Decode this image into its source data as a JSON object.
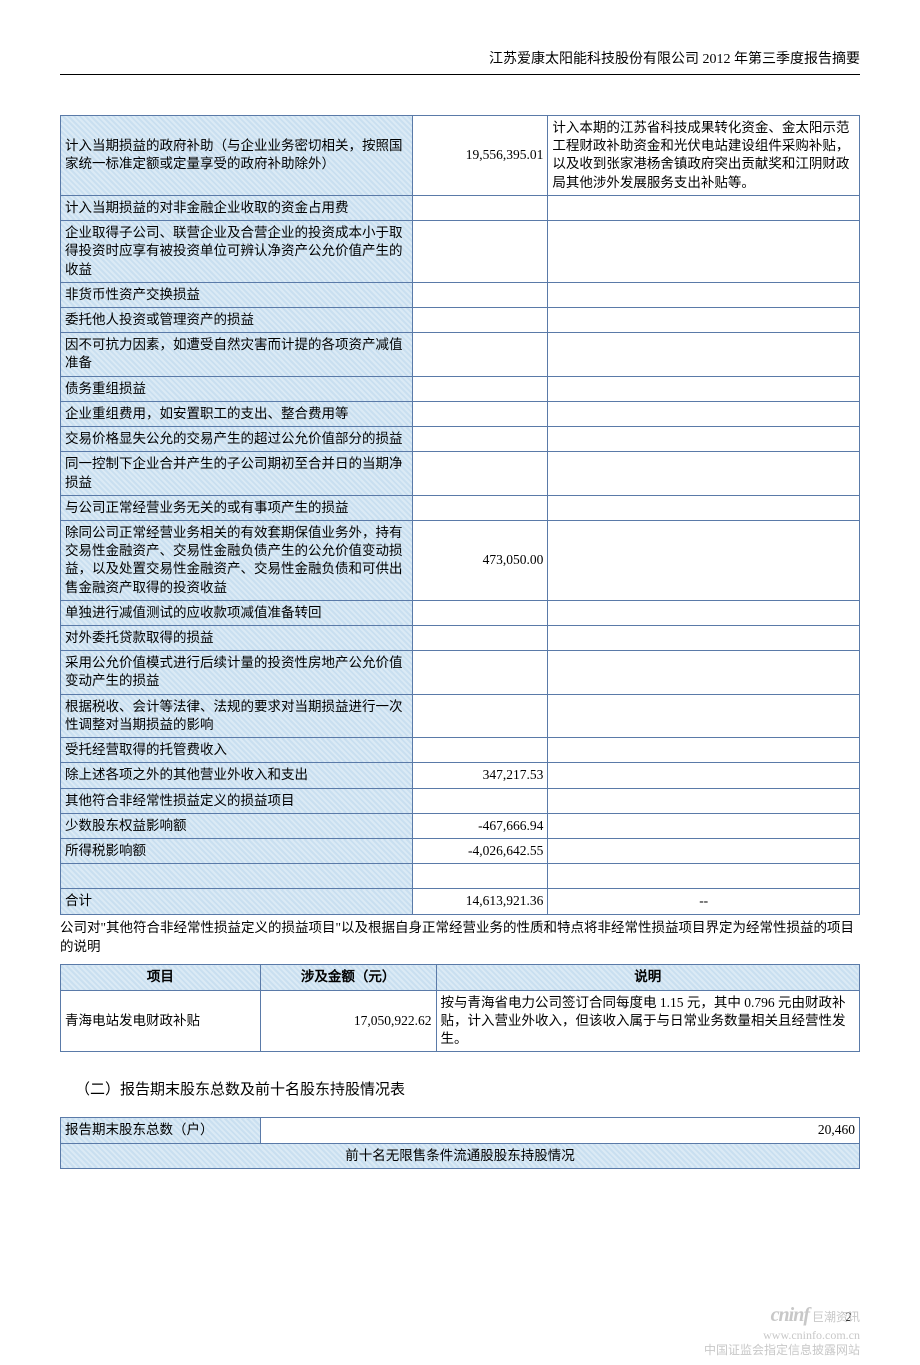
{
  "header": "江苏爱康太阳能科技股份有限公司 2012 年第三季度报告摘要",
  "table1": {
    "col_widths": [
      "44%",
      "17%",
      "39%"
    ],
    "rows": [
      {
        "label": "计入当期损益的政府补助（与企业业务密切相关，按照国家统一标准定额或定量享受的政府补助除外）",
        "amount": "19,556,395.01",
        "desc": "计入本期的江苏省科技成果转化资金、金太阳示范工程财政补助资金和光伏电站建设组件采购补贴，以及收到张家港杨舍镇政府突出贡献奖和江阴财政局其他涉外发展服务支出补贴等。"
      },
      {
        "label": "计入当期损益的对非金融企业收取的资金占用费",
        "amount": "",
        "desc": ""
      },
      {
        "label": "企业取得子公司、联营企业及合营企业的投资成本小于取得投资时应享有被投资单位可辨认净资产公允价值产生的收益",
        "amount": "",
        "desc": ""
      },
      {
        "label": "非货币性资产交换损益",
        "amount": "",
        "desc": ""
      },
      {
        "label": "委托他人投资或管理资产的损益",
        "amount": "",
        "desc": ""
      },
      {
        "label": "因不可抗力因素，如遭受自然灾害而计提的各项资产减值准备",
        "amount": "",
        "desc": ""
      },
      {
        "label": "债务重组损益",
        "amount": "",
        "desc": ""
      },
      {
        "label": "企业重组费用，如安置职工的支出、整合费用等",
        "amount": "",
        "desc": ""
      },
      {
        "label": "交易价格显失公允的交易产生的超过公允价值部分的损益",
        "amount": "",
        "desc": ""
      },
      {
        "label": "同一控制下企业合并产生的子公司期初至合并日的当期净损益",
        "amount": "",
        "desc": ""
      },
      {
        "label": "与公司正常经营业务无关的或有事项产生的损益",
        "amount": "",
        "desc": ""
      },
      {
        "label": "除同公司正常经营业务相关的有效套期保值业务外，持有交易性金融资产、交易性金融负债产生的公允价值变动损益，以及处置交易性金融资产、交易性金融负债和可供出售金融资产取得的投资收益",
        "amount": "473,050.00",
        "desc": ""
      },
      {
        "label": "单独进行减值测试的应收款项减值准备转回",
        "amount": "",
        "desc": ""
      },
      {
        "label": "对外委托贷款取得的损益",
        "amount": "",
        "desc": ""
      },
      {
        "label": "采用公允价值模式进行后续计量的投资性房地产公允价值变动产生的损益",
        "amount": "",
        "desc": ""
      },
      {
        "label": "根据税收、会计等法律、法规的要求对当期损益进行一次性调整对当期损益的影响",
        "amount": "",
        "desc": ""
      },
      {
        "label": "受托经营取得的托管费收入",
        "amount": "",
        "desc": ""
      },
      {
        "label": "除上述各项之外的其他营业外收入和支出",
        "amount": "347,217.53",
        "desc": ""
      },
      {
        "label": "其他符合非经常性损益定义的损益项目",
        "amount": "",
        "desc": ""
      },
      {
        "label": "少数股东权益影响额",
        "amount": "-467,666.94",
        "desc": ""
      },
      {
        "label": "所得税影响额",
        "amount": "-4,026,642.55",
        "desc": ""
      },
      {
        "label": "",
        "amount": "",
        "desc": "",
        "blank": true
      },
      {
        "label": "合计",
        "amount": "14,613,921.36",
        "desc": "--",
        "desc_center": true
      }
    ]
  },
  "note1": "公司对\"其他符合非经常性损益定义的损益项目\"以及根据自身正常经营业务的性质和特点将非经常性损益项目界定为经常性损益的项目的说明",
  "table2": {
    "col_widths": [
      "25%",
      "22%",
      "53%"
    ],
    "headers": [
      "项目",
      "涉及金额（元）",
      "说明"
    ],
    "rows": [
      {
        "c0": "青海电站发电财政补贴",
        "c1": "17,050,922.62",
        "c2": "按与青海省电力公司签订合同每度电 1.15 元，其中 0.796 元由财政补贴，计入营业外收入，但该收入属于与日常业务数量相关且经营性发生。"
      }
    ]
  },
  "section2_title": "（二）报告期末股东总数及前十名股东持股情况表",
  "table3": {
    "col_widths": [
      "25%",
      "75%"
    ],
    "row1_label": "报告期末股东总数（户）",
    "row1_value": "20,460",
    "row2": "前十名无限售条件流通股股东持股情况"
  },
  "footer": {
    "page": "2",
    "logo": "cninf",
    "logo_cn": "巨潮资讯",
    "url": "www.cninfo.com.cn",
    "tag": "中国证监会指定信息披露网站"
  }
}
